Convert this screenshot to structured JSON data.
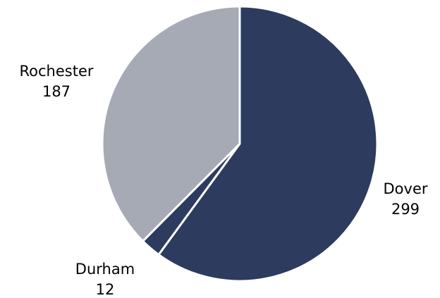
{
  "chart_data": {
    "type": "pie",
    "title": "",
    "categories": [
      "Dover",
      "Durham",
      "Rochester"
    ],
    "values": [
      299,
      12,
      187
    ],
    "colors": [
      "#2c3b5e",
      "#2c3b5e",
      "#a6aab5"
    ],
    "labels": [
      {
        "name": "Dover",
        "value": "299"
      },
      {
        "name": "Durham",
        "value": "12"
      },
      {
        "name": "Rochester",
        "value": "187"
      }
    ],
    "start": "12 o'clock",
    "direction": "clockwise",
    "legend": "none"
  }
}
